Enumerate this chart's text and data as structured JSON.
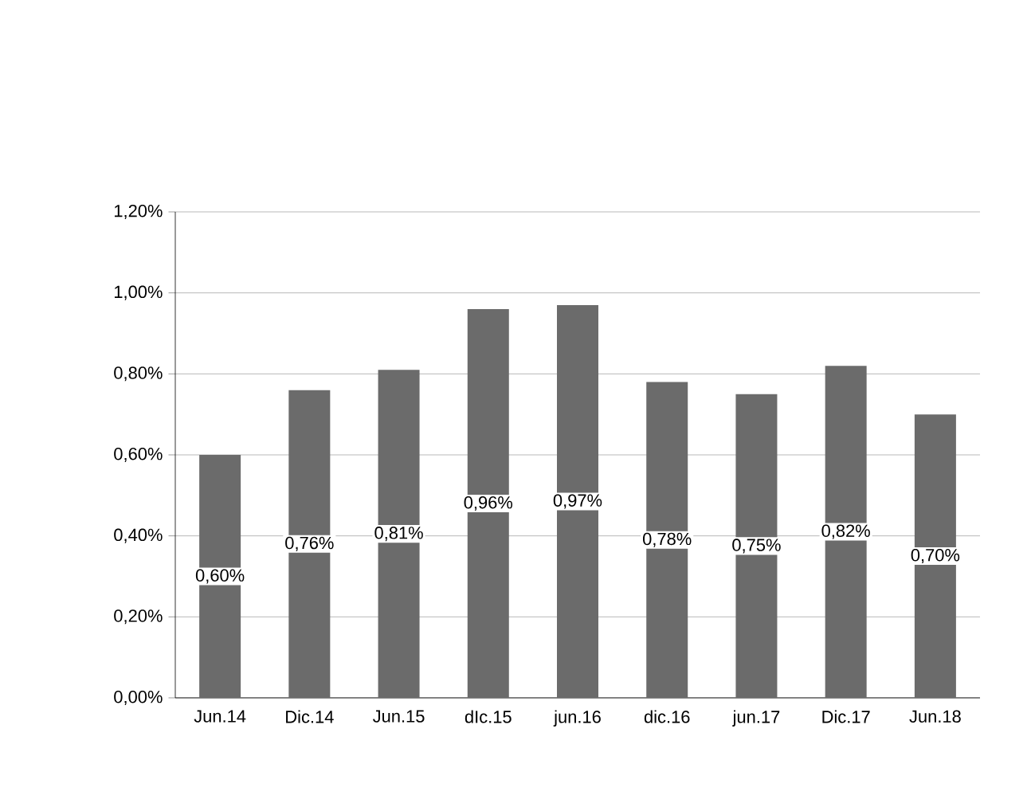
{
  "chart_data": {
    "type": "bar",
    "categories": [
      "Jun.14",
      "Dic.14",
      "Jun.15",
      "dIc.15",
      "jun.16",
      "dic.16",
      "jun.17",
      "Dic.17",
      "Jun.18"
    ],
    "values": [
      0.6,
      0.76,
      0.81,
      0.96,
      0.97,
      0.78,
      0.75,
      0.82,
      0.7
    ],
    "value_labels": [
      "0,60%",
      "0,76%",
      "0,81%",
      "0,96%",
      "0,97%",
      "0,78%",
      "0,75%",
      "0,82%",
      "0,70%"
    ],
    "color": "#6b6b6b",
    "ylim": [
      0,
      1.2
    ],
    "yticks": [
      {
        "value": 0,
        "label": "0,00%"
      },
      {
        "value": 0.2,
        "label": "0,20%"
      },
      {
        "value": 0.4,
        "label": "0,40%"
      },
      {
        "value": 0.6,
        "label": "0,60%"
      },
      {
        "value": 0.8,
        "label": "0,80%"
      },
      {
        "value": 1.0,
        "label": "1,00%"
      },
      {
        "value": 1.2,
        "label": "1,20%"
      }
    ],
    "grid": "y"
  }
}
